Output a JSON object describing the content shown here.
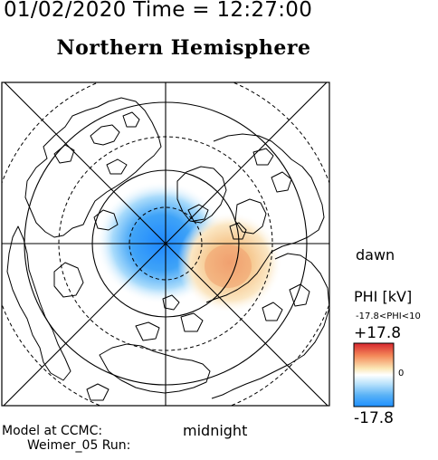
{
  "header": {
    "datetime": "01/02/2020 Time = 12:27:00",
    "hemisphere": "Northern Hemisphere"
  },
  "map": {
    "dawn_label": "dawn",
    "midnight_label": "midnight"
  },
  "footer": {
    "model_label": "Model at CCMC:",
    "run_label": "Weimer_05 Run:"
  },
  "colorbar": {
    "title": "PHI [kV]",
    "range_text": "-17.8<PHI<10",
    "max_label": "+17.8",
    "zero_label": "0",
    "min_label": "-17.8",
    "colors": {
      "high": "#d7262e",
      "mid_high": "#f6d58a",
      "zero": "#ffffff",
      "mid_low": "#7ec8f5",
      "low": "#1e90ff"
    }
  }
}
